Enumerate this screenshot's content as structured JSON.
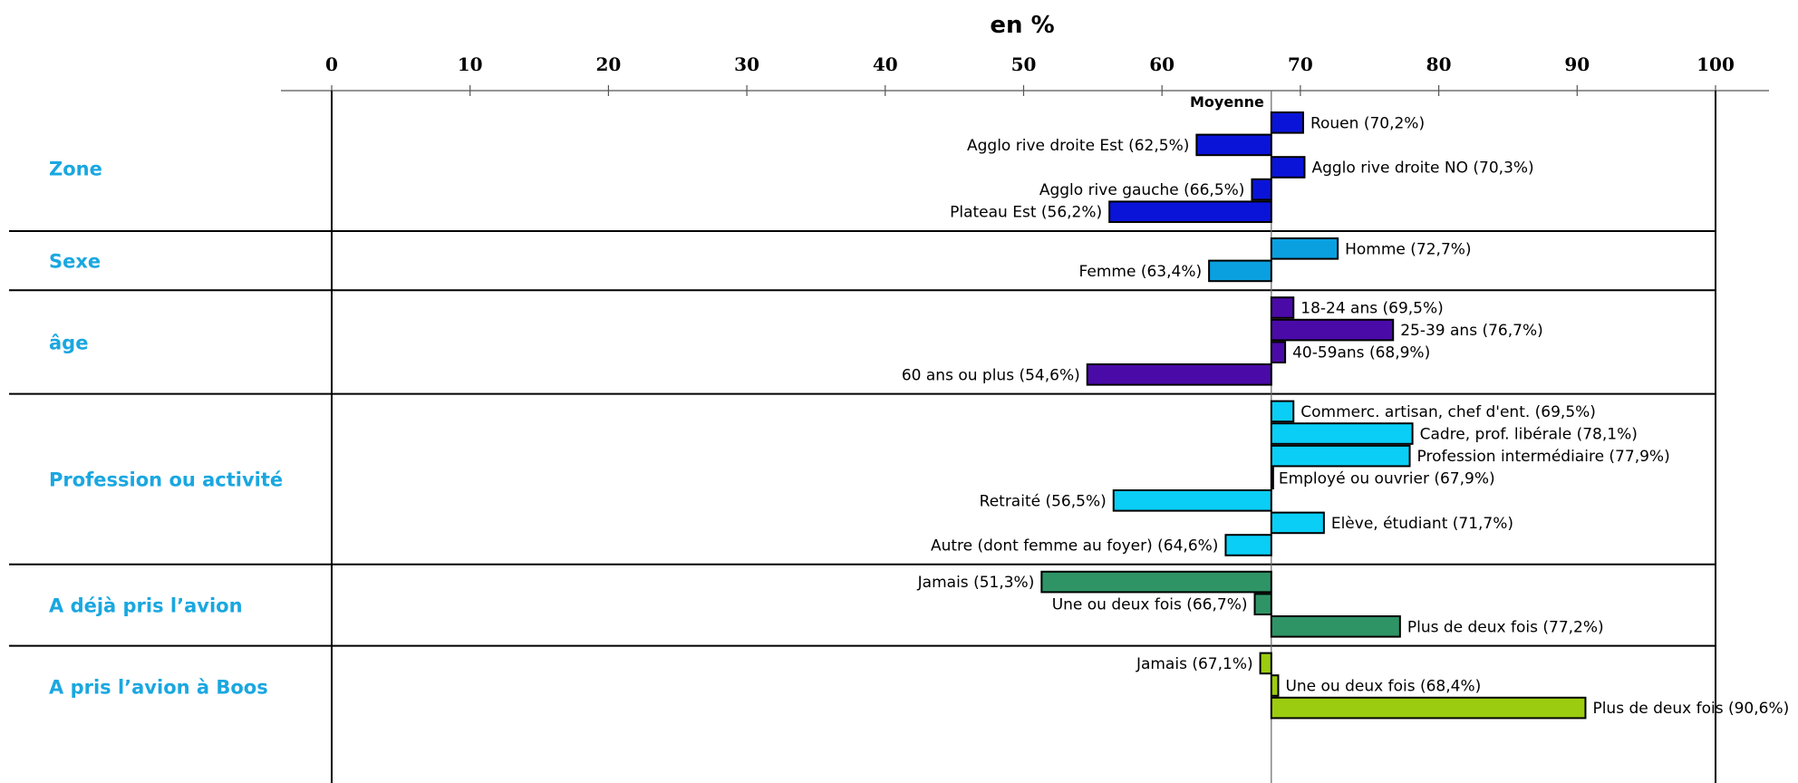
{
  "chart_data": {
    "type": "bar",
    "orientation": "horizontal",
    "title": "en %",
    "xlim": [
      0,
      100
    ],
    "xticks": [
      "0",
      "10",
      "20",
      "30",
      "40",
      "50",
      "60",
      "70",
      "80",
      "90",
      "100"
    ],
    "reference": {
      "label": "Moyenne",
      "value": 67.9
    },
    "group_label_color": "#1aa7e0",
    "grid": false,
    "groups": [
      {
        "name": "Zone",
        "color": "#0a14d9",
        "items": [
          {
            "label": "Rouen (70,2%)",
            "value": 70.2
          },
          {
            "label": "Agglo rive droite Est (62,5%)",
            "value": 62.5
          },
          {
            "label": "Agglo rive droite NO (70,3%)",
            "value": 70.3
          },
          {
            "label": "Agglo rive gauche (66,5%)",
            "value": 66.5
          },
          {
            "label": "Plateau Est (56,2%)",
            "value": 56.2
          }
        ]
      },
      {
        "name": "Sexe",
        "color": "#0aa0e0",
        "items": [
          {
            "label": "Homme (72,7%)",
            "value": 72.7
          },
          {
            "label": "Femme (63,4%)",
            "value": 63.4
          }
        ]
      },
      {
        "name": "âge",
        "color": "#4a0aa8",
        "items": [
          {
            "label": "18-24 ans (69,5%)",
            "value": 69.5
          },
          {
            "label": "25-39 ans (76,7%)",
            "value": 76.7
          },
          {
            "label": "40-59ans (68,9%)",
            "value": 68.9
          },
          {
            "label": "60 ans ou plus (54,6%)",
            "value": 54.6
          }
        ]
      },
      {
        "name": "Profession ou activité",
        "color": "#0acef5",
        "items": [
          {
            "label": "Commerc. artisan, chef d'ent. (69,5%)",
            "value": 69.5
          },
          {
            "label": "Cadre, prof. libérale (78,1%)",
            "value": 78.1
          },
          {
            "label": "Profession intermédiaire (77,9%)",
            "value": 77.9
          },
          {
            "label": "Employé ou ouvrier (67,9%)",
            "value": 67.9
          },
          {
            "label": "Retraité (56,5%)",
            "value": 56.5
          },
          {
            "label": "Elève, étudiant (71,7%)",
            "value": 71.7
          },
          {
            "label": "Autre (dont femme au foyer) (64,6%)",
            "value": 64.6
          }
        ]
      },
      {
        "name": "A déjà pris l’avion",
        "color": "#2e9466",
        "items": [
          {
            "label": "Jamais (51,3%)",
            "value": 51.3
          },
          {
            "label": "Une ou deux fois (66,7%)",
            "value": 66.7
          },
          {
            "label": "Plus de deux fois (77,2%)",
            "value": 77.2
          }
        ]
      },
      {
        "name": "A pris l’avion à Boos",
        "color": "#9ccc0f",
        "items": [
          {
            "label": "Jamais (67,1%)",
            "value": 67.1
          },
          {
            "label": "Une ou deux fois (68,4%)",
            "value": 68.4
          },
          {
            "label": "Plus de deux fois (90,6%)",
            "value": 90.6
          }
        ]
      }
    ]
  }
}
